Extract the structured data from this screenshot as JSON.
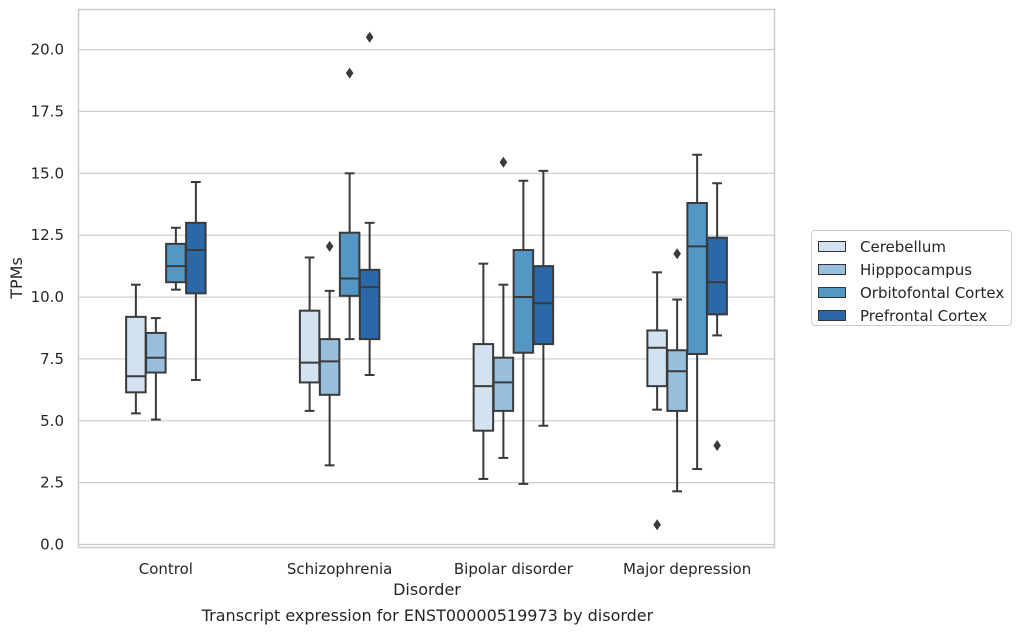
{
  "chart_data": {
    "type": "box",
    "xlabel": "Disorder",
    "ylabel": "TPMs",
    "caption": "Transcript expression for ENST00000519973 by disorder",
    "ylim": [
      -0.1,
      21.6
    ],
    "yticks": [
      "0.0",
      "2.5",
      "5.0",
      "7.5",
      "10.0",
      "12.5",
      "15.0",
      "17.5",
      "20.0"
    ],
    "categories": [
      "Control",
      "Schizophrenia",
      "Bipolar disorder",
      "Major depression"
    ],
    "grid": "horizontal",
    "legend_position": "right",
    "series": [
      {
        "name": "Cerebellum",
        "color": "#d2e2f1",
        "boxes": [
          {
            "whisker_low": 5.3,
            "q1": 6.15,
            "median": 6.8,
            "q3": 9.2,
            "whisker_high": 10.5,
            "outliers": []
          },
          {
            "whisker_low": 5.4,
            "q1": 6.55,
            "median": 7.35,
            "q3": 9.45,
            "whisker_high": 11.6,
            "outliers": []
          },
          {
            "whisker_low": 2.65,
            "q1": 4.6,
            "median": 6.4,
            "q3": 8.1,
            "whisker_high": 11.35,
            "outliers": []
          },
          {
            "whisker_low": 5.45,
            "q1": 6.4,
            "median": 7.95,
            "q3": 8.65,
            "whisker_high": 11.0,
            "outliers": [
              0.8
            ]
          }
        ]
      },
      {
        "name": "Hipppocampus",
        "color": "#98c0dd",
        "boxes": [
          {
            "whisker_low": 5.05,
            "q1": 6.95,
            "median": 7.55,
            "q3": 8.55,
            "whisker_high": 9.15,
            "outliers": []
          },
          {
            "whisker_low": 3.2,
            "q1": 6.05,
            "median": 7.4,
            "q3": 8.3,
            "whisker_high": 10.25,
            "outliers": [
              12.05
            ]
          },
          {
            "whisker_low": 3.5,
            "q1": 5.4,
            "median": 6.55,
            "q3": 7.55,
            "whisker_high": 10.5,
            "outliers": [
              15.45
            ]
          },
          {
            "whisker_low": 2.15,
            "q1": 5.4,
            "median": 7.0,
            "q3": 7.85,
            "whisker_high": 9.9,
            "outliers": [
              11.75
            ]
          }
        ]
      },
      {
        "name": "Orbitofontal Cortex",
        "color": "#5497c5",
        "boxes": [
          {
            "whisker_low": 10.3,
            "q1": 10.6,
            "median": 11.25,
            "q3": 12.15,
            "whisker_high": 12.8,
            "outliers": []
          },
          {
            "whisker_low": 8.3,
            "q1": 10.05,
            "median": 10.75,
            "q3": 12.6,
            "whisker_high": 15.0,
            "outliers": [
              19.05
            ]
          },
          {
            "whisker_low": 2.45,
            "q1": 7.75,
            "median": 10.0,
            "q3": 11.9,
            "whisker_high": 14.7,
            "outliers": []
          },
          {
            "whisker_low": 3.05,
            "q1": 7.7,
            "median": 12.05,
            "q3": 13.8,
            "whisker_high": 15.75,
            "outliers": []
          }
        ]
      },
      {
        "name": "Prefrontal Cortex",
        "color": "#2a68a8",
        "boxes": [
          {
            "whisker_low": 6.65,
            "q1": 10.15,
            "median": 11.9,
            "q3": 13.0,
            "whisker_high": 14.65,
            "outliers": []
          },
          {
            "whisker_low": 6.85,
            "q1": 8.3,
            "median": 10.4,
            "q3": 11.1,
            "whisker_high": 13.0,
            "outliers": [
              20.5
            ]
          },
          {
            "whisker_low": 4.8,
            "q1": 8.1,
            "median": 9.75,
            "q3": 11.25,
            "whisker_high": 15.1,
            "outliers": []
          },
          {
            "whisker_low": 8.45,
            "q1": 9.3,
            "median": 10.6,
            "q3": 12.4,
            "whisker_high": 14.6,
            "outliers": [
              4.0
            ]
          }
        ]
      }
    ]
  }
}
